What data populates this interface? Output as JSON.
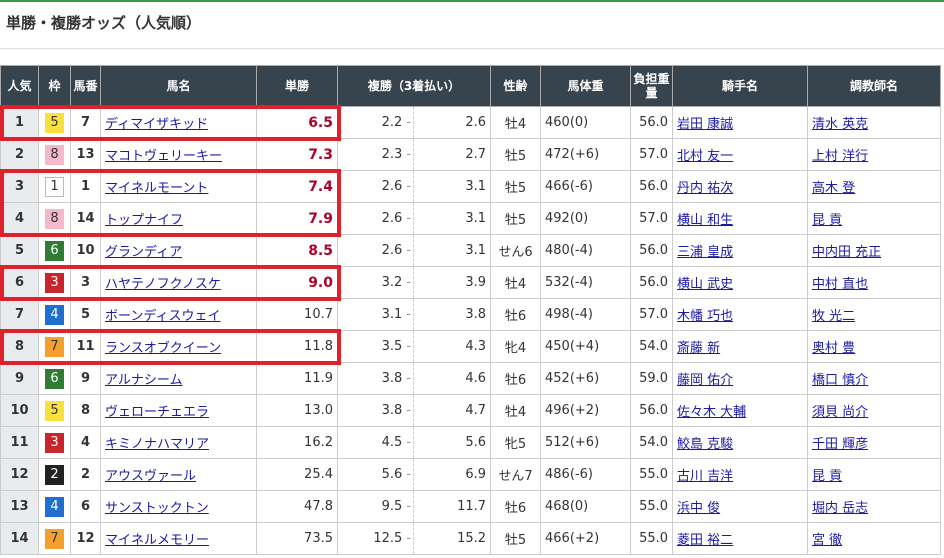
{
  "title": "単勝・複勝オッズ（人気順）",
  "headers": {
    "rank": "人気",
    "waku": "枠",
    "num": "馬番",
    "name": "馬名",
    "win": "単勝",
    "place": "複勝（3着払い）",
    "sexage": "性齢",
    "weight": "馬体重",
    "load": "負担重量",
    "jockey": "騎手名",
    "trainer": "調教師名"
  },
  "waku_colors": {
    "1": {
      "bg": "#ffffff",
      "fg": "#333333"
    },
    "2": {
      "bg": "#222222",
      "fg": "#ffffff"
    },
    "3": {
      "bg": "#c9262b",
      "fg": "#ffffff"
    },
    "4": {
      "bg": "#1f6fcf",
      "fg": "#ffffff"
    },
    "5": {
      "bg": "#f7e13a",
      "fg": "#333333"
    },
    "6": {
      "bg": "#2f7d32",
      "fg": "#ffffff"
    },
    "7": {
      "bg": "#f5a02c",
      "fg": "#333333"
    },
    "8": {
      "bg": "#f4b8cb",
      "fg": "#333333"
    }
  },
  "highlight_color": "#e0202a",
  "highlighted_ranks": [
    [
      1
    ],
    [
      3,
      4
    ],
    [
      6
    ],
    [
      8
    ]
  ],
  "rows": [
    {
      "rank": "1",
      "waku": "5",
      "num": "7",
      "name": "ディマイザキッド",
      "win": "6.5",
      "place_min": "2.2",
      "place_max": "2.6",
      "sexage": "牡4",
      "weight": "460(0)",
      "load": "56.0",
      "jockey": "岩田 康誠",
      "trainer": "清水 英克"
    },
    {
      "rank": "2",
      "waku": "8",
      "num": "13",
      "name": "マコトヴェリーキー",
      "win": "7.3",
      "place_min": "2.3",
      "place_max": "2.7",
      "sexage": "牡5",
      "weight": "472(+6)",
      "load": "57.0",
      "jockey": "北村 友一",
      "trainer": "上村 洋行"
    },
    {
      "rank": "3",
      "waku": "1",
      "num": "1",
      "name": "マイネルモーント",
      "win": "7.4",
      "place_min": "2.6",
      "place_max": "3.1",
      "sexage": "牡5",
      "weight": "466(-6)",
      "load": "56.0",
      "jockey": "丹内 祐次",
      "trainer": "高木 登"
    },
    {
      "rank": "4",
      "waku": "8",
      "num": "14",
      "name": "トップナイフ",
      "win": "7.9",
      "place_min": "2.6",
      "place_max": "3.1",
      "sexage": "牡5",
      "weight": "492(0)",
      "load": "57.0",
      "jockey": "横山 和生",
      "trainer": "昆 貢"
    },
    {
      "rank": "5",
      "waku": "6",
      "num": "10",
      "name": "グランディア",
      "win": "8.5",
      "place_min": "2.6",
      "place_max": "3.1",
      "sexage": "せん6",
      "weight": "480(-4)",
      "load": "56.0",
      "jockey": "三浦 皇成",
      "trainer": "中内田 充正"
    },
    {
      "rank": "6",
      "waku": "3",
      "num": "3",
      "name": "ハヤテノフクノスケ",
      "win": "9.0",
      "place_min": "3.2",
      "place_max": "3.9",
      "sexage": "牡4",
      "weight": "532(-4)",
      "load": "56.0",
      "jockey": "横山 武史",
      "trainer": "中村 直也"
    },
    {
      "rank": "7",
      "waku": "4",
      "num": "5",
      "name": "ボーンディスウェイ",
      "win": "10.7",
      "place_min": "3.1",
      "place_max": "3.8",
      "sexage": "牡6",
      "weight": "498(-4)",
      "load": "57.0",
      "jockey": "木幡 巧也",
      "trainer": "牧 光二"
    },
    {
      "rank": "8",
      "waku": "7",
      "num": "11",
      "name": "ランスオブクイーン",
      "win": "11.8",
      "place_min": "3.5",
      "place_max": "4.3",
      "sexage": "牝4",
      "weight": "450(+4)",
      "load": "54.0",
      "jockey": "斎藤 新",
      "trainer": "奥村 豊"
    },
    {
      "rank": "9",
      "waku": "6",
      "num": "9",
      "name": "アルナシーム",
      "win": "11.9",
      "place_min": "3.8",
      "place_max": "4.6",
      "sexage": "牡6",
      "weight": "452(+6)",
      "load": "59.0",
      "jockey": "藤岡 佑介",
      "trainer": "橋口 慎介"
    },
    {
      "rank": "10",
      "waku": "5",
      "num": "8",
      "name": "ヴェローチェエラ",
      "win": "13.0",
      "place_min": "3.8",
      "place_max": "4.7",
      "sexage": "牡4",
      "weight": "496(+2)",
      "load": "56.0",
      "jockey": "佐々木 大輔",
      "trainer": "須貝 尚介"
    },
    {
      "rank": "11",
      "waku": "3",
      "num": "4",
      "name": "キミノナハマリア",
      "win": "16.2",
      "place_min": "4.5",
      "place_max": "5.6",
      "sexage": "牝5",
      "weight": "512(+6)",
      "load": "54.0",
      "jockey": "鮫島 克駿",
      "trainer": "千田 輝彦"
    },
    {
      "rank": "12",
      "waku": "2",
      "num": "2",
      "name": "アウスヴァール",
      "win": "25.4",
      "place_min": "5.6",
      "place_max": "6.9",
      "sexage": "せん7",
      "weight": "486(-6)",
      "load": "55.0",
      "jockey": "古川 吉洋",
      "trainer": "昆 貢"
    },
    {
      "rank": "13",
      "waku": "4",
      "num": "6",
      "name": "サンストックトン",
      "win": "47.8",
      "place_min": "9.5",
      "place_max": "11.7",
      "sexage": "牡6",
      "weight": "468(0)",
      "load": "55.0",
      "jockey": "浜中 俊",
      "trainer": "堀内 岳志"
    },
    {
      "rank": "14",
      "waku": "7",
      "num": "12",
      "name": "マイネルメモリー",
      "win": "73.5",
      "place_min": "12.5",
      "place_max": "15.2",
      "sexage": "牡5",
      "weight": "466(+2)",
      "load": "55.0",
      "jockey": "菱田 裕二",
      "trainer": "宮 徹"
    }
  ]
}
